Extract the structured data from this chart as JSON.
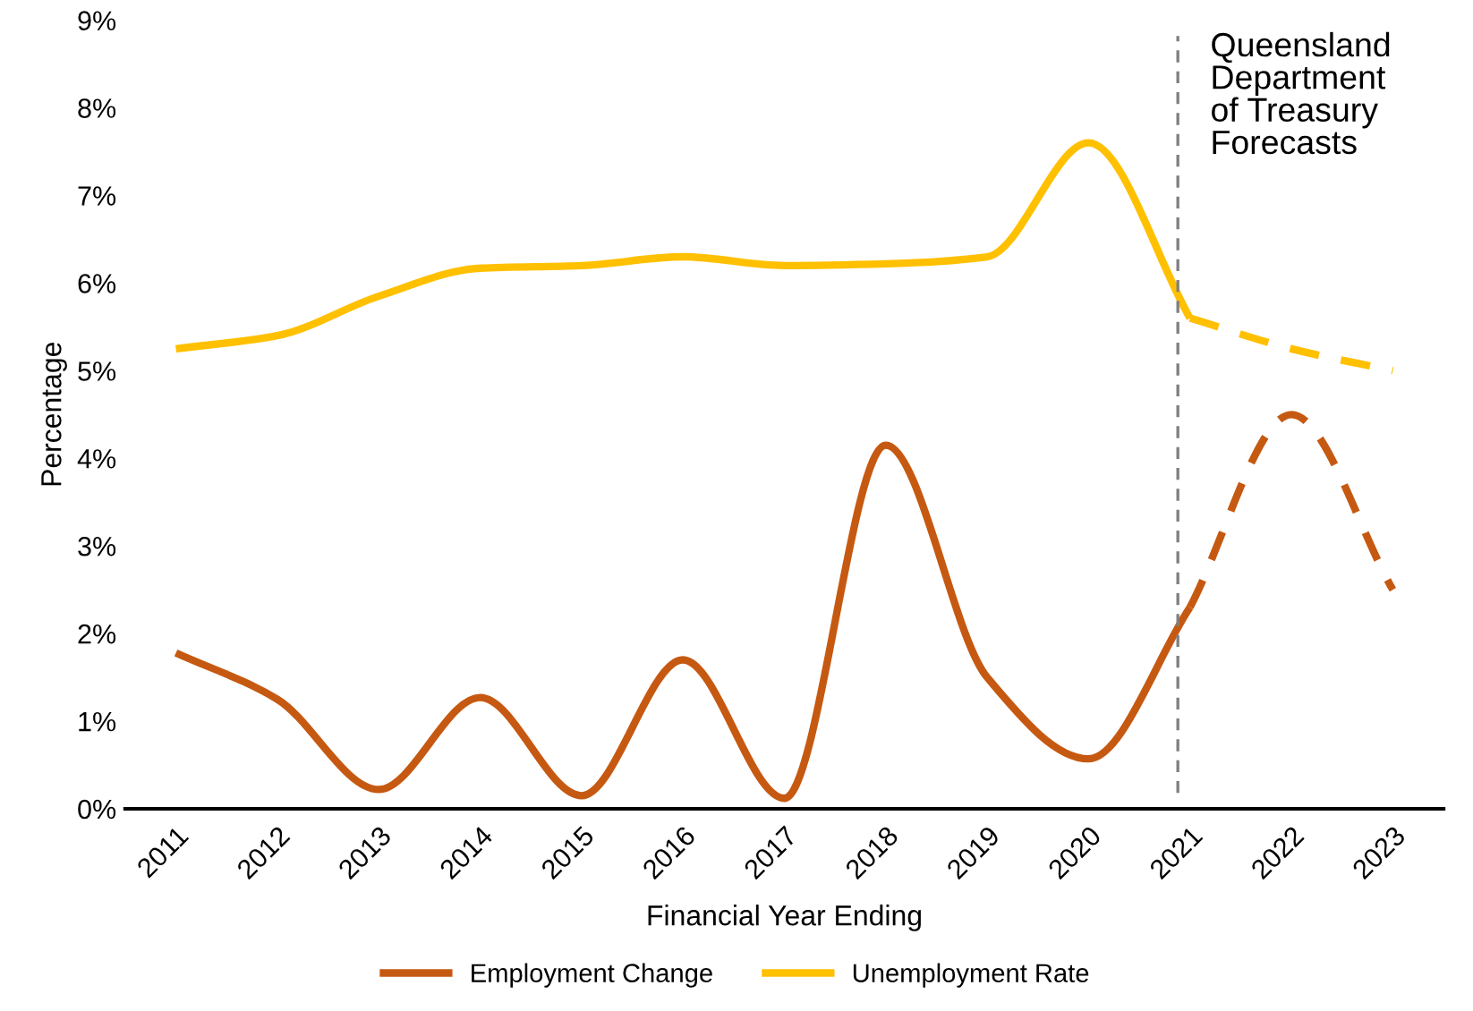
{
  "chart_data": {
    "type": "line",
    "xlabel": "Financial Year Ending",
    "ylabel": "Percentage",
    "categories": [
      "2011",
      "2012",
      "2013",
      "2014",
      "2015",
      "2016",
      "2017",
      "2018",
      "2019",
      "2020",
      "2021",
      "2022",
      "2023"
    ],
    "series": [
      {
        "name": "Employment Change",
        "color": "#c65911",
        "line_style": "solid",
        "values": [
          1.78,
          1.25,
          0.22,
          1.27,
          0.15,
          1.7,
          0.12,
          4.15,
          1.5,
          0.57,
          2.3,
          null,
          null
        ]
      },
      {
        "name": "Unemployment Rate",
        "color": "#ffc000",
        "line_style": "solid",
        "values": [
          5.25,
          5.4,
          5.85,
          6.17,
          6.2,
          6.3,
          6.2,
          6.22,
          6.3,
          7.6,
          5.6,
          null,
          null
        ]
      },
      {
        "color": "#c65911",
        "line_style": "dashed",
        "values": [
          null,
          null,
          null,
          null,
          null,
          null,
          null,
          null,
          null,
          null,
          2.3,
          4.5,
          2.5
        ]
      },
      {
        "color": "#ffc000",
        "line_style": "dashed",
        "values": [
          null,
          null,
          null,
          null,
          null,
          null,
          null,
          null,
          null,
          null,
          5.6,
          5.25,
          5.0
        ]
      }
    ],
    "ylim": [
      0,
      9
    ],
    "yticks": [
      {
        "value": 0,
        "label": "0%"
      },
      {
        "value": 1,
        "label": "1%"
      },
      {
        "value": 2,
        "label": "2%"
      },
      {
        "value": 3,
        "label": "3%"
      },
      {
        "value": 4,
        "label": "4%"
      },
      {
        "value": 5,
        "label": "5%"
      },
      {
        "value": 6,
        "label": "6%"
      },
      {
        "value": 7,
        "label": "7%"
      },
      {
        "value": 8,
        "label": "8%"
      },
      {
        "value": 9,
        "label": "9%"
      }
    ],
    "ref_lines": [
      {
        "axis": "x",
        "value": "2021",
        "label": "Queensland\nDepartment\nof Treasury\nForecasts",
        "color": "#808080",
        "line_style": "dashed"
      }
    ],
    "legend": "bottom",
    "marker": "none"
  }
}
